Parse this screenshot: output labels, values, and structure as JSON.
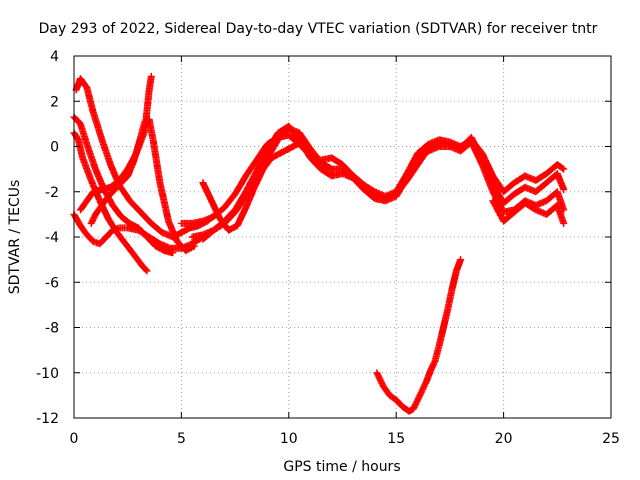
{
  "chart_data": {
    "type": "scatter",
    "title": "Day 293 of 2022, Sidereal Day-to-day VTEC variation (SDTVAR) for receiver tntr",
    "xlabel": "GPS time / hours",
    "ylabel": "SDTVAR / TECUs",
    "xlim": [
      0,
      25
    ],
    "ylim": [
      -12,
      4
    ],
    "xticks": [
      "0",
      "5",
      "10",
      "15",
      "20",
      "25"
    ],
    "yticks": [
      "4",
      "2",
      "0",
      "-2",
      "-4",
      "-6",
      "-8",
      "-10",
      "-12"
    ],
    "grid": true,
    "marker": "+",
    "color": "#ff0000",
    "series": [
      {
        "name": "track-a",
        "x": [
          0.0,
          0.2,
          0.4,
          0.8,
          1.2,
          1.6,
          2.0,
          2.4,
          2.8,
          3.2,
          3.4
        ],
        "y": [
          0.6,
          0.3,
          -0.5,
          -1.5,
          -2.4,
          -3.2,
          -3.8,
          -4.3,
          -4.8,
          -5.3,
          -5.5
        ]
      },
      {
        "name": "track-b",
        "x": [
          0.0,
          0.3,
          0.6,
          1.0,
          1.4,
          1.8,
          2.2,
          2.6,
          3.0,
          3.4,
          3.8,
          4.2,
          4.6
        ],
        "y": [
          1.3,
          1.0,
          0.1,
          -1.0,
          -1.9,
          -2.6,
          -3.1,
          -3.4,
          -3.6,
          -4.0,
          -4.4,
          -4.6,
          -4.7
        ]
      },
      {
        "name": "track-c",
        "x": [
          0.1,
          0.3,
          0.6,
          0.9,
          1.3,
          1.7,
          2.1,
          2.6,
          3.1,
          3.6,
          4.1,
          4.6,
          5.0,
          5.4,
          5.8,
          6.2,
          6.6
        ],
        "y": [
          2.5,
          3.0,
          2.6,
          1.5,
          0.3,
          -0.8,
          -1.7,
          -2.4,
          -2.9,
          -3.4,
          -3.8,
          -4.0,
          -3.8,
          -3.6,
          -3.5,
          -3.3,
          -3.0
        ]
      },
      {
        "name": "track-d",
        "x": [
          0.0,
          0.3,
          0.6,
          0.9,
          1.2,
          1.5,
          1.8,
          2.1,
          2.5,
          3.0,
          3.5,
          4.0,
          4.5,
          5.0,
          5.5,
          6.0
        ],
        "y": [
          -3.0,
          -3.5,
          -3.9,
          -4.2,
          -4.3,
          -4.0,
          -3.7,
          -3.6,
          -3.6,
          -3.7,
          -4.0,
          -4.3,
          -4.5,
          -4.5,
          -4.3,
          -4.0
        ]
      },
      {
        "name": "track-e",
        "x": [
          0.8,
          1.0,
          1.3,
          1.6,
          1.9,
          2.2,
          2.5,
          2.8,
          3.1,
          3.3,
          3.5,
          3.7,
          4.0,
          4.4,
          4.8,
          5.2,
          5.6
        ],
        "y": [
          -3.4,
          -3.0,
          -2.6,
          -2.2,
          -1.9,
          -1.6,
          -1.3,
          -0.6,
          0.4,
          1.1,
          1.2,
          0.2,
          -1.6,
          -3.3,
          -4.2,
          -4.6,
          -4.4
        ]
      },
      {
        "name": "track-f",
        "x": [
          0.3,
          0.6,
          0.9,
          1.3,
          1.7,
          2.1,
          2.5,
          2.9,
          3.3,
          3.5,
          3.6
        ],
        "y": [
          -2.8,
          -2.4,
          -2.0,
          -1.9,
          -1.8,
          -1.5,
          -1.0,
          -0.3,
          0.7,
          2.5,
          3.1
        ]
      },
      {
        "name": "track-g",
        "x": [
          5.0,
          5.5,
          6.0,
          6.5,
          7.0,
          7.5,
          8.0,
          8.5,
          9.0,
          9.5,
          10.0,
          10.5,
          11.0,
          11.5,
          12.0,
          12.5,
          13.0,
          13.5,
          14.0,
          14.5,
          15.0,
          15.5,
          16.0,
          16.5,
          17.0,
          17.5,
          18.0,
          18.5,
          19.0,
          19.5,
          20.0,
          20.5,
          21.0,
          21.5,
          22.0,
          22.5,
          22.8
        ],
        "y": [
          -3.4,
          -3.4,
          -3.3,
          -3.1,
          -2.7,
          -2.1,
          -1.3,
          -0.6,
          0.1,
          0.4,
          0.5,
          0.1,
          -0.4,
          -0.6,
          -0.5,
          -0.8,
          -1.3,
          -1.7,
          -2.0,
          -2.2,
          -2.0,
          -1.2,
          -0.3,
          0.1,
          0.3,
          0.2,
          0.0,
          0.3,
          -0.3,
          -1.3,
          -2.0,
          -1.6,
          -1.3,
          -1.5,
          -1.2,
          -0.8,
          -1.0
        ]
      },
      {
        "name": "track-h",
        "x": [
          5.5,
          6.0,
          6.5,
          7.0,
          7.5,
          8.0,
          8.5,
          9.0,
          9.5,
          10.0,
          10.5,
          11.0,
          11.5,
          12.0,
          12.5,
          13.0,
          13.5,
          14.0,
          14.5,
          15.0,
          15.5,
          16.0,
          16.5,
          17.0,
          17.5,
          18.0,
          18.5,
          19.0,
          19.5,
          20.0,
          20.5,
          21.0,
          21.5,
          22.0,
          22.5,
          22.8
        ],
        "y": [
          -4.0,
          -3.9,
          -3.7,
          -3.4,
          -2.9,
          -2.2,
          -1.3,
          -0.5,
          0.3,
          0.8,
          0.6,
          -0.1,
          -0.7,
          -1.0,
          -1.0,
          -1.3,
          -1.7,
          -2.2,
          -2.3,
          -2.1,
          -1.5,
          -0.8,
          -0.1,
          0.2,
          0.1,
          -0.1,
          0.4,
          -0.6,
          -1.7,
          -2.5,
          -2.1,
          -1.8,
          -2.0,
          -1.6,
          -1.2,
          -1.9
        ]
      },
      {
        "name": "track-i",
        "x": [
          6.0,
          6.5,
          7.0,
          7.5,
          8.0,
          8.5,
          9.0,
          9.5,
          10.0,
          10.5,
          11.0,
          11.5,
          12.0,
          12.5,
          13.0,
          13.5,
          14.0,
          14.5,
          15.0,
          15.5,
          16.0,
          16.5,
          17.0,
          17.5,
          18.0,
          18.5,
          19.0,
          19.5,
          20.0,
          20.5,
          21.0,
          21.5,
          22.0,
          22.5,
          22.8
        ],
        "y": [
          -4.1,
          -3.7,
          -3.3,
          -2.8,
          -2.0,
          -1.1,
          -0.2,
          0.6,
          0.9,
          0.3,
          -0.5,
          -1.0,
          -1.3,
          -1.2,
          -1.4,
          -1.9,
          -2.3,
          -2.4,
          -2.2,
          -1.4,
          -0.6,
          -0.2,
          0.0,
          0.0,
          -0.2,
          0.2,
          -0.8,
          -2.0,
          -2.9,
          -2.8,
          -2.4,
          -2.6,
          -2.4,
          -2.0,
          -2.8
        ]
      },
      {
        "name": "track-j",
        "x": [
          6.0,
          6.4,
          6.8,
          7.2,
          7.6,
          8.0,
          8.4,
          8.8,
          9.2,
          9.6,
          10.0,
          10.4
        ],
        "y": [
          -1.6,
          -2.4,
          -3.2,
          -3.7,
          -3.5,
          -2.7,
          -1.8,
          -1.0,
          -0.5,
          -0.3,
          -0.1,
          0.1
        ]
      },
      {
        "name": "track-k",
        "x": [
          19.5,
          20.0,
          20.5,
          21.0,
          21.5,
          22.0,
          22.5,
          22.8
        ],
        "y": [
          -2.4,
          -3.3,
          -2.9,
          -2.5,
          -2.8,
          -3.0,
          -2.6,
          -3.4
        ]
      },
      {
        "name": "track-l",
        "x": [
          14.1,
          14.4,
          14.7,
          15.0,
          15.3,
          15.6,
          15.8,
          16.0,
          16.2,
          16.4,
          16.6,
          16.8,
          17.0,
          17.2,
          17.4,
          17.6,
          17.8,
          18.0
        ],
        "y": [
          -10.0,
          -10.6,
          -11.0,
          -11.2,
          -11.5,
          -11.7,
          -11.6,
          -11.2,
          -10.8,
          -10.4,
          -9.9,
          -9.5,
          -8.8,
          -8.0,
          -7.2,
          -6.3,
          -5.5,
          -5.0
        ]
      }
    ]
  }
}
